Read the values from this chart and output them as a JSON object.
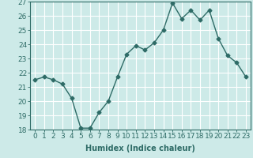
{
  "x": [
    0,
    1,
    2,
    3,
    4,
    5,
    6,
    7,
    8,
    9,
    10,
    11,
    12,
    13,
    14,
    15,
    16,
    17,
    18,
    19,
    20,
    21,
    22,
    23
  ],
  "y": [
    21.5,
    21.7,
    21.5,
    21.2,
    20.2,
    18.1,
    18.1,
    19.2,
    20.0,
    21.7,
    23.3,
    23.9,
    23.6,
    24.1,
    25.0,
    26.9,
    25.8,
    26.4,
    25.7,
    26.4,
    24.4,
    23.2,
    22.7,
    21.7
  ],
  "title": "",
  "xlabel": "Humidex (Indice chaleur)",
  "ylabel": "",
  "xlim": [
    -0.5,
    23.5
  ],
  "ylim": [
    18,
    27
  ],
  "yticks": [
    18,
    19,
    20,
    21,
    22,
    23,
    24,
    25,
    26,
    27
  ],
  "xticks": [
    0,
    1,
    2,
    3,
    4,
    5,
    6,
    7,
    8,
    9,
    10,
    11,
    12,
    13,
    14,
    15,
    16,
    17,
    18,
    19,
    20,
    21,
    22,
    23
  ],
  "bg_color": "#cdeae8",
  "grid_color": "#ffffff",
  "line_color": "#2e6b66",
  "marker": "D",
  "marker_size": 2.5,
  "line_width": 1.0,
  "label_fontsize": 7,
  "tick_fontsize": 6.5
}
